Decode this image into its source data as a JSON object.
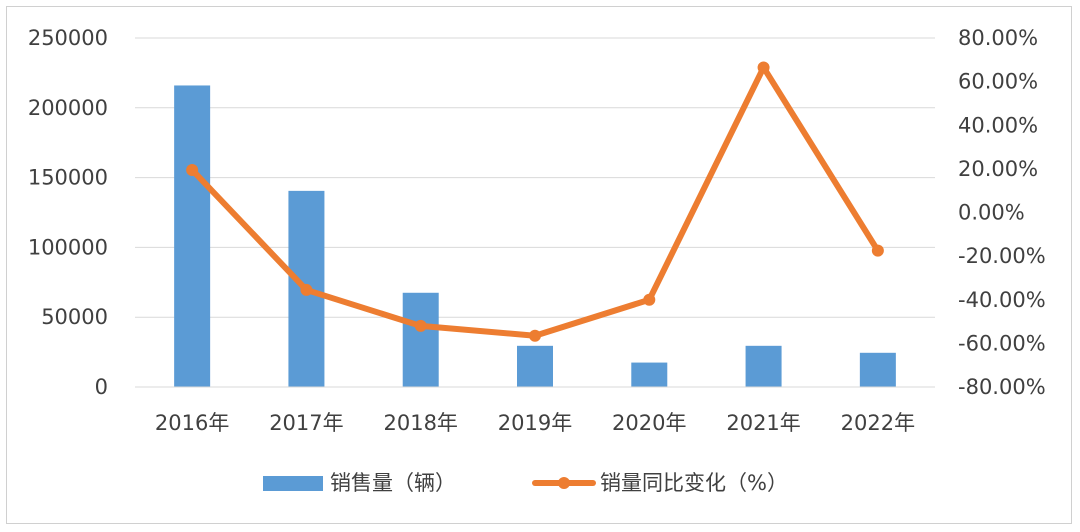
{
  "chart_data": {
    "type": "bar",
    "categories": [
      "2016年",
      "2017年",
      "2018年",
      "2019年",
      "2020年",
      "2021年",
      "2022年"
    ],
    "series": [
      {
        "name": "销售量（辆）",
        "type": "bar",
        "axis": "left",
        "color": "#5b9bd5",
        "values": [
          216000,
          140500,
          67500,
          29500,
          17500,
          29500,
          24500
        ]
      },
      {
        "name": "销量同比变化（%）",
        "type": "line",
        "axis": "right",
        "color": "#ed7d31",
        "values": [
          19.5,
          -35.5,
          -52.0,
          -56.5,
          -40.0,
          66.5,
          -17.5
        ]
      }
    ],
    "y_left": {
      "min": 0,
      "max": 250000,
      "ticks": [
        "0",
        "50000",
        "100000",
        "150000",
        "200000",
        "250000"
      ]
    },
    "y_right": {
      "min": -80,
      "max": 80,
      "ticks": [
        "-80.00%",
        "-60.00%",
        "-40.00%",
        "-20.00%",
        "0.00%",
        "20.00%",
        "40.00%",
        "60.00%",
        "80.00%"
      ]
    },
    "grid": true,
    "legend_position": "bottom"
  }
}
